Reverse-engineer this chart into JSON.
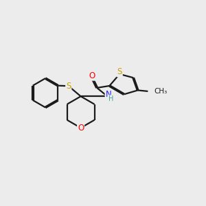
{
  "background_color": "#ececec",
  "bond_color": "#1a1a1a",
  "atom_colors": {
    "S": "#c8a000",
    "O": "#ff0000",
    "N": "#2020ff",
    "H": "#40a0a0",
    "C": "#1a1a1a"
  },
  "bond_lw": 1.6,
  "dbo": 0.032,
  "xlim": [
    0.0,
    10.0
  ],
  "ylim": [
    1.5,
    8.5
  ],
  "figsize": [
    3.0,
    3.0
  ],
  "dpi": 100
}
